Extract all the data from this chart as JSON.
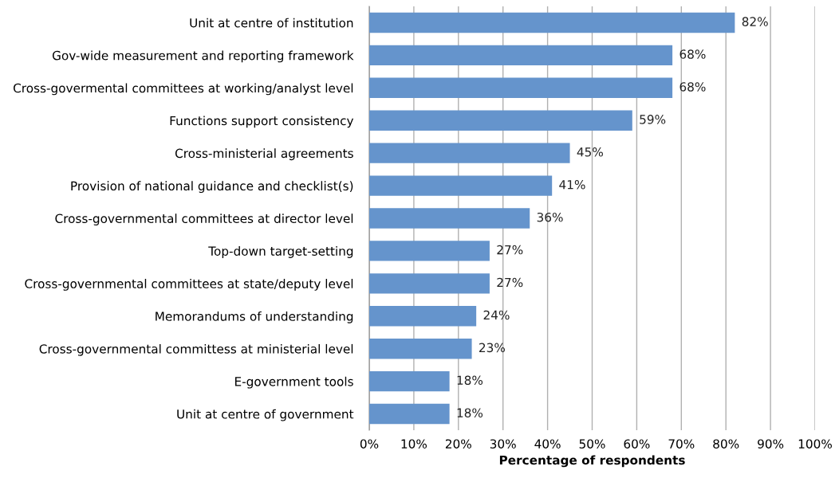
{
  "chart_data": {
    "type": "bar",
    "orientation": "horizontal",
    "xlabel": "Percentage of respondents",
    "categories": [
      "Unit at centre of institution",
      "Gov-wide measurement and reporting framework",
      "Cross-govermental committees at working/analyst level",
      "Functions support consistency",
      "Cross-ministerial agreements",
      "Provision of national guidance and checklist(s)",
      "Cross-governmental committees at director level",
      "Top-down target-setting",
      "Cross-governmental committees at state/deputy level",
      "Memorandums of understanding",
      "Cross-governmental committess at ministerial level",
      "E-government tools",
      "Unit at centre of government"
    ],
    "values": [
      82,
      68,
      68,
      59,
      45,
      41,
      36,
      27,
      27,
      24,
      23,
      18,
      18
    ],
    "value_labels": [
      "82%",
      "68%",
      "68%",
      "59%",
      "45%",
      "41%",
      "36%",
      "27%",
      "27%",
      "24%",
      "23%",
      "18%",
      "18%"
    ],
    "color": "#6594cc",
    "xlim": [
      0,
      100
    ],
    "xticks": [
      {
        "value": 0,
        "label": "0%"
      },
      {
        "value": 10,
        "label": "10%"
      },
      {
        "value": 20,
        "label": "20%"
      },
      {
        "value": 30,
        "label": "30%"
      },
      {
        "value": 40,
        "label": "40%"
      },
      {
        "value": 50,
        "label": "50%"
      },
      {
        "value": 60,
        "label": "60%"
      },
      {
        "value": 70,
        "label": "70%"
      },
      {
        "value": 80,
        "label": "80%"
      },
      {
        "value": 90,
        "label": "90%"
      },
      {
        "value": 100,
        "label": "100%"
      }
    ],
    "grid": "x",
    "legend": false
  }
}
